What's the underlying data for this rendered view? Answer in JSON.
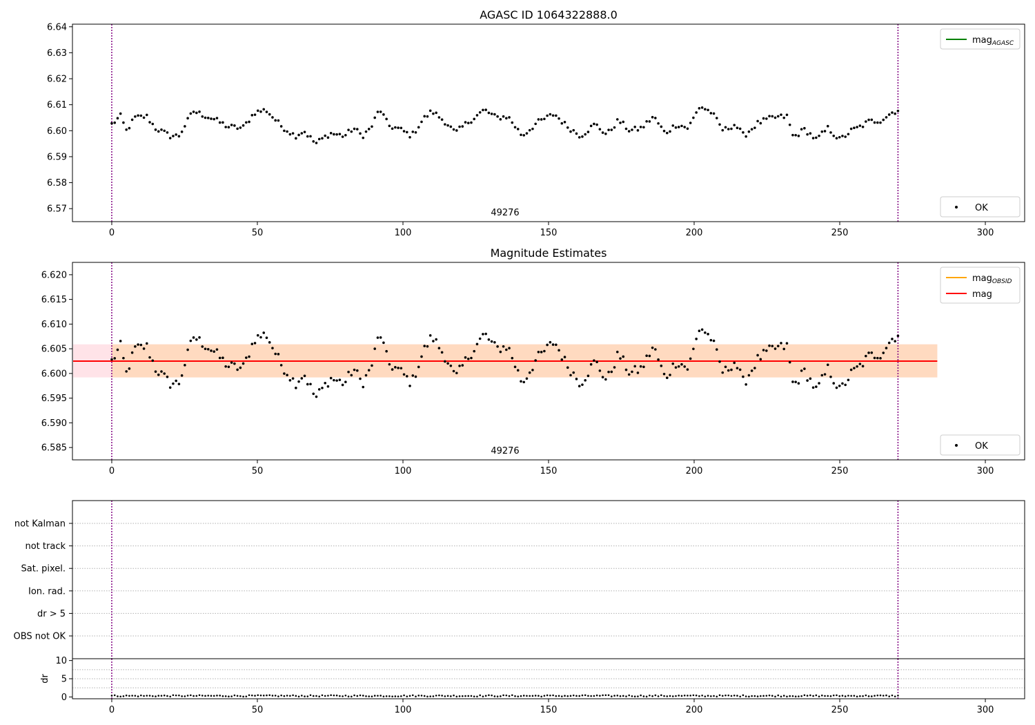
{
  "figure": {
    "background": "#ffffff"
  },
  "chart_data": [
    {
      "id": "top",
      "type": "scatter",
      "title": "AGASC ID 1064322888.0",
      "xlim": [
        -13.5,
        313.5
      ],
      "ylim": [
        6.565,
        6.641
      ],
      "xticks": [
        0,
        50,
        100,
        150,
        200,
        250,
        300
      ],
      "yticks": [
        6.57,
        6.58,
        6.59,
        6.6,
        6.61,
        6.62,
        6.63,
        6.64
      ],
      "ytick_decimals": 2,
      "vlines": [
        0,
        270
      ],
      "vline_color": "#800080",
      "obs_label": {
        "text": "49276",
        "x": 135
      },
      "legend_top": {
        "position": "top-right",
        "entries": [
          {
            "label": "mag",
            "subscript": "AGASC",
            "color": "#008000",
            "kind": "line"
          }
        ]
      },
      "legend_bottom": {
        "position": "bottom-right",
        "entries": [
          {
            "label": "OK",
            "color": "#000000",
            "kind": "marker"
          }
        ]
      },
      "series": [
        {
          "name": "OK",
          "color": "#000000",
          "points_ref": "mag_series"
        }
      ]
    },
    {
      "id": "middle",
      "type": "scatter",
      "title": "Magnitude Estimates",
      "xlim": [
        -13.5,
        313.5
      ],
      "ylim": [
        6.5825,
        6.6225
      ],
      "xticks": [
        0,
        50,
        100,
        150,
        200,
        250,
        300
      ],
      "yticks": [
        6.585,
        6.59,
        6.595,
        6.6,
        6.605,
        6.61,
        6.615,
        6.62
      ],
      "ytick_decimals": 3,
      "vlines": [
        0,
        270
      ],
      "vline_color": "#800080",
      "obs_label": {
        "text": "49276",
        "x": 135
      },
      "band_outer": {
        "x": [
          -13.5,
          283.5
        ],
        "y": [
          6.5992,
          6.6059
        ],
        "color": "#ffc0cb"
      },
      "band_inner": {
        "x": [
          0,
          283.5
        ],
        "y": [
          6.5992,
          6.6059
        ],
        "color": "#ffd7b5"
      },
      "mag_line": {
        "y": 6.6025,
        "x": [
          -13.5,
          283.5
        ],
        "color": "#ff0000"
      },
      "legend_top": {
        "position": "top-right",
        "entries": [
          {
            "label": "mag",
            "subscript": "OBSID",
            "color": "#ffa500",
            "kind": "line"
          },
          {
            "label": "mag",
            "subscript": "",
            "color": "#ff0000",
            "kind": "line"
          }
        ]
      },
      "legend_bottom": {
        "position": "bottom-right",
        "entries": [
          {
            "label": "OK",
            "color": "#000000",
            "kind": "marker"
          }
        ]
      },
      "series": [
        {
          "name": "OK",
          "color": "#000000",
          "points_ref": "mag_series"
        }
      ]
    },
    {
      "id": "flags",
      "type": "scatter",
      "xlim": [
        -13.5,
        313.5
      ],
      "categories": [
        "OBS not OK",
        "dr > 5",
        "Ion. rad.",
        "Sat. pixel.",
        "not track",
        "not Kalman"
      ],
      "flagged_points": [],
      "vlines": [
        0,
        270
      ],
      "vline_color": "#800080"
    },
    {
      "id": "dr",
      "type": "scatter",
      "ylabel": "dr",
      "xlim": [
        -13.5,
        313.5
      ],
      "ylim": [
        -0.5,
        10.5
      ],
      "xticks": [
        0,
        50,
        100,
        150,
        200,
        250,
        300
      ],
      "yticks": [
        0,
        5,
        10
      ],
      "vlines": [
        0,
        270
      ],
      "vline_color": "#800080",
      "dr_values_range": [
        0.1,
        0.5
      ]
    }
  ],
  "mag_series": {
    "x_start": 0,
    "x_end": 270,
    "n": 270,
    "waypoints": [
      [
        0,
        6.6025
      ],
      [
        3,
        6.6055
      ],
      [
        5,
        6.6
      ],
      [
        8,
        6.605
      ],
      [
        12,
        6.6055
      ],
      [
        15,
        6.601
      ],
      [
        20,
        6.598
      ],
      [
        23,
        6.598
      ],
      [
        28,
        6.6075
      ],
      [
        35,
        6.6045
      ],
      [
        40,
        6.6015
      ],
      [
        45,
        6.601
      ],
      [
        49,
        6.607
      ],
      [
        53,
        6.608
      ],
      [
        58,
        6.602
      ],
      [
        63,
        6.598
      ],
      [
        66,
        6.6
      ],
      [
        70,
        6.595
      ],
      [
        75,
        6.599
      ],
      [
        80,
        6.598
      ],
      [
        83,
        6.601
      ],
      [
        86,
        6.598
      ],
      [
        89,
        6.601
      ],
      [
        92,
        6.6085
      ],
      [
        95,
        6.602
      ],
      [
        99,
        6.6005
      ],
      [
        103,
        6.598
      ],
      [
        107,
        6.6045
      ],
      [
        110,
        6.6075
      ],
      [
        115,
        6.603
      ],
      [
        118,
        6.599
      ],
      [
        122,
        6.603
      ],
      [
        128,
        6.608
      ],
      [
        132,
        6.605
      ],
      [
        136,
        6.6055
      ],
      [
        141,
        6.598
      ],
      [
        146,
        6.603
      ],
      [
        152,
        6.6065
      ],
      [
        156,
        6.602
      ],
      [
        161,
        6.598
      ],
      [
        166,
        6.6025
      ],
      [
        170,
        6.5985
      ],
      [
        174,
        6.604
      ],
      [
        178,
        6.6
      ],
      [
        182,
        6.601
      ],
      [
        186,
        6.6055
      ],
      [
        190,
        6.599
      ],
      [
        194,
        6.6025
      ],
      [
        198,
        6.601
      ],
      [
        202,
        6.6095
      ],
      [
        206,
        6.607
      ],
      [
        210,
        6.6
      ],
      [
        214,
        6.6025
      ],
      [
        217,
        6.598
      ],
      [
        222,
        6.603
      ],
      [
        227,
        6.605
      ],
      [
        232,
        6.6055
      ],
      [
        234,
        6.5975
      ],
      [
        238,
        6.6005
      ],
      [
        242,
        6.5965
      ],
      [
        246,
        6.601
      ],
      [
        250,
        6.5965
      ],
      [
        254,
        6.6
      ],
      [
        257,
        6.6015
      ],
      [
        260,
        6.6035
      ],
      [
        264,
        6.604
      ],
      [
        268,
        6.607
      ],
      [
        270,
        6.608
      ]
    ],
    "dr_base": 0.25
  }
}
